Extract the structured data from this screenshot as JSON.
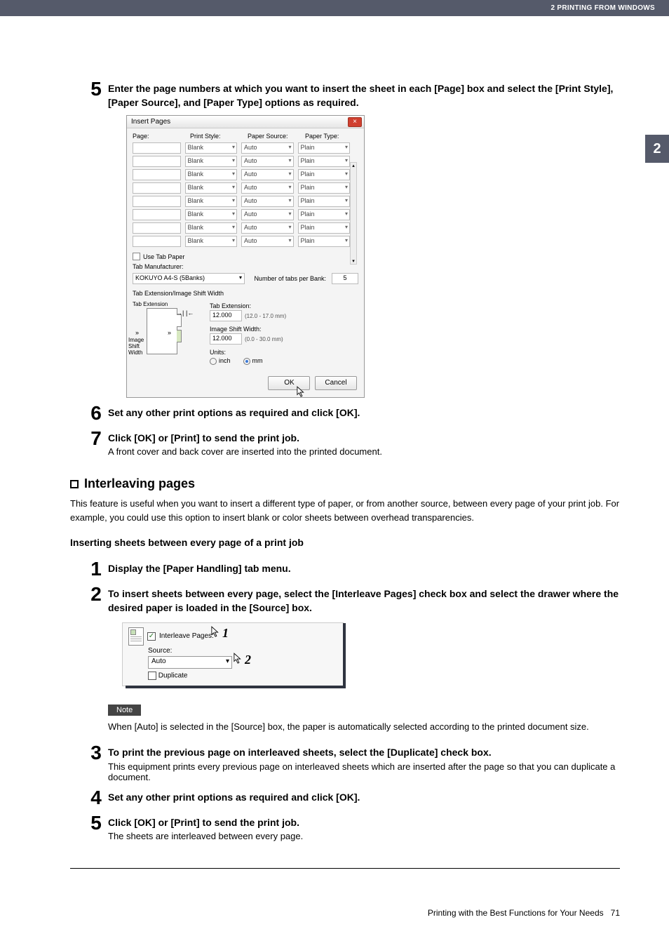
{
  "header": {
    "chapter": "2 PRINTING FROM WINDOWS"
  },
  "side_tab": "2",
  "step5": {
    "num": "5",
    "title": "Enter the page numbers at which you want to insert the sheet in each [Page] box and select the [Print Style], [Paper Source], and [Paper Type] options as required."
  },
  "dialog": {
    "title": "Insert Pages",
    "close": "×",
    "headers": {
      "page": "Page:",
      "print_style": "Print Style:",
      "paper_source": "Paper Source:",
      "paper_type": "Paper Type:"
    },
    "row_values": {
      "print_style": "Blank",
      "paper_source": "Auto",
      "paper_type": "Plain"
    },
    "row_count": 8,
    "use_tab_paper": "Use Tab Paper",
    "tab_manufacturer_label": "Tab Manufacturer:",
    "tab_manufacturer_value": "KOKUYO A4-S (5Banks)",
    "tabs_per_bank_label": "Number of tabs per Bank:",
    "tabs_per_bank_value": "5",
    "tab_ext_section_title": "Tab Extension/Image Shift Width",
    "tab_ext_label_left1": "Tab Extension",
    "tab_ext_label_left2": "Image Shift\nWidth",
    "tab_extension_label": "Tab Extension:",
    "tab_extension_value": "12.000",
    "tab_extension_range": "(12.0 - 17.0 mm)",
    "image_shift_label": "Image Shift Width:",
    "image_shift_value": "12.000",
    "image_shift_range": "(0.0 - 30.0 mm)",
    "units_label": "Units:",
    "unit_inch": "inch",
    "unit_mm": "mm",
    "ok": "OK",
    "cancel": "Cancel"
  },
  "step6": {
    "num": "6",
    "title": "Set any other print options as required and click [OK]."
  },
  "step7": {
    "num": "7",
    "title": "Click [OK] or [Print] to send the print job.",
    "sub": "A front cover and back cover are inserted into the printed document."
  },
  "section": {
    "title": "Interleaving pages"
  },
  "section_body": "This feature is useful when you want to insert a different type of paper, or from another source, between every page of your print job. For example, you could use this option to insert blank or color sheets between overhead transparencies.",
  "sub_section": "Inserting sheets between every page of a print job",
  "il_step1": {
    "num": "1",
    "title": "Display the [Paper Handling] tab menu."
  },
  "il_step2": {
    "num": "2",
    "title": "To insert sheets between every page, select the [Interleave Pages] check box and select the drawer where the desired paper is loaded in the [Source] box."
  },
  "interleave": {
    "label": "Interleave Pages:",
    "source_label": "Source:",
    "source_value": "Auto",
    "duplicate_label": "Duplicate",
    "callout1": "1",
    "callout2": "2"
  },
  "note": {
    "tag": "Note",
    "text": "When [Auto] is selected in the [Source] box, the paper is automatically selected according to the printed document size."
  },
  "il_step3": {
    "num": "3",
    "title": "To print the previous page on interleaved sheets, select the [Duplicate] check box.",
    "sub": "This equipment prints every previous page on interleaved sheets which are inserted after the page so that you can duplicate a document."
  },
  "il_step4": {
    "num": "4",
    "title": "Set any other print options as required and click [OK]."
  },
  "il_step5": {
    "num": "5",
    "title": "Click [OK] or [Print] to send the print job.",
    "sub": "The sheets are interleaved between every page."
  },
  "footer": {
    "text": "Printing with the Best Functions for Your Needs",
    "page": "71"
  }
}
